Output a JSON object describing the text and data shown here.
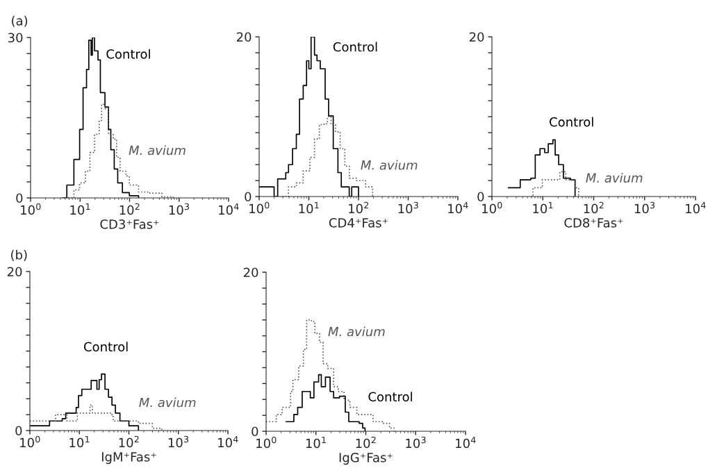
{
  "chart_data": [
    {
      "type": "step",
      "title": "(a)",
      "xlabel": "CD3⁺Fas⁺",
      "log": "x",
      "grid": false,
      "legend": false,
      "marker": "none",
      "xlim": [
        1,
        10000
      ],
      "xticks": [
        {
          "value": 1,
          "label": "10$^{0}$"
        },
        {
          "value": 10,
          "label": "10$^{1}$"
        },
        {
          "value": 100,
          "label": "10$^{2}$"
        },
        {
          "value": 1000,
          "label": "10$^{3}$"
        },
        {
          "value": 10000,
          "label": "10$^{4}$"
        }
      ],
      "ylim": [
        0,
        30
      ],
      "yticks": [
        0,
        {
          "value": 3,
          "label": null
        },
        {
          "value": 6,
          "label": null
        },
        {
          "value": 9,
          "label": null
        },
        {
          "value": 12,
          "label": null
        },
        {
          "value": 15,
          "label": null
        },
        {
          "value": 18,
          "label": null
        },
        {
          "value": 21,
          "label": null
        },
        {
          "value": 24,
          "label": null
        },
        {
          "value": 27,
          "label": null
        },
        30
      ],
      "series": [
        {
          "name": "Control",
          "color": "#000000",
          "line_style": "solid",
          "x": [
            4.4,
            5.4,
            7.5,
            9.8,
            11.5,
            13.5,
            15,
            16.7,
            17.7,
            19.6,
            23,
            25.7,
            31.8,
            37.5,
            41.8,
            49,
            57.6,
            71.6,
            99,
            152
          ],
          "values": [
            0,
            2.4,
            7.2,
            12.8,
            20.6,
            24,
            29.5,
            26.7,
            30,
            27.5,
            25.8,
            19.7,
            17,
            12.8,
            9,
            5.4,
            2.8,
            1,
            0.4,
            0
          ]
        },
        {
          "name": "M. avium",
          "color": "#555555",
          "line_style": "dotted",
          "x": [
            4.9,
            7.5,
            9.8,
            12.8,
            15.8,
            19.6,
            24.4,
            27.2,
            31.8,
            37.5,
            46.6,
            54.6,
            64.3,
            84.3,
            99,
            152,
            233,
            450,
            766
          ],
          "values": [
            0,
            1.5,
            2.8,
            5,
            8.5,
            11.9,
            14.5,
            17.5,
            16.7,
            11.9,
            11,
            7.6,
            5,
            4.1,
            2.4,
            1.1,
            0.9,
            0.2,
            0
          ]
        }
      ]
    },
    {
      "type": "step",
      "xlabel": "CD4⁺Fas⁺",
      "log": "x",
      "grid": false,
      "legend": false,
      "marker": "none",
      "xlim": [
        1,
        10000
      ],
      "xticks": [
        {
          "value": 1,
          "label": "10$^{0}$"
        },
        {
          "value": 10,
          "label": "10$^{1}$"
        },
        {
          "value": 100,
          "label": "10$^{2}$"
        },
        {
          "value": 1000,
          "label": "10$^{3}$"
        },
        {
          "value": 10000,
          "label": "10$^{4}$"
        }
      ],
      "ylim": [
        0,
        20
      ],
      "yticks": [
        0,
        {
          "value": 2,
          "label": null
        },
        {
          "value": 4,
          "label": null
        },
        {
          "value": 6,
          "label": null
        },
        {
          "value": 8,
          "label": null
        },
        {
          "value": 10,
          "label": null
        },
        {
          "value": 12,
          "label": null
        },
        {
          "value": 14,
          "label": null
        },
        {
          "value": 16,
          "label": null
        },
        {
          "value": 18,
          "label": null
        },
        20
      ],
      "series": [
        {
          "name": "Control",
          "color": "#000000",
          "line_style": "solid",
          "x": [
            1,
            1.6,
            2,
            2.36,
            3.43,
            3.9,
            4.7,
            5.6,
            6.5,
            7.7,
            9,
            10,
            11.1,
            13,
            14.6,
            17,
            21.3,
            25,
            31,
            38.5,
            45,
            65,
            73,
            100
          ],
          "values": [
            1.2,
            1.2,
            0,
            2.2,
            3,
            4,
            6,
            7.8,
            12.2,
            13.9,
            17,
            16,
            20,
            17.7,
            17,
            16,
            12.2,
            10.1,
            6,
            3,
            1.2,
            0,
            1.2,
            0
          ]
        },
        {
          "name": "M. avium",
          "color": "#555555",
          "line_style": "dotted",
          "x": [
            2.9,
            3.9,
            5.6,
            7.7,
            10.5,
            13,
            16.3,
            20.2,
            23.7,
            28,
            34.5,
            42.7,
            53,
            65.6,
            90.5,
            139,
            192
          ],
          "values": [
            0,
            1.2,
            1.7,
            3.2,
            4.9,
            7.2,
            9,
            9.1,
            10,
            9,
            8.1,
            6,
            3.8,
            2.3,
            2,
            1.2,
            0
          ]
        }
      ]
    },
    {
      "type": "step",
      "xlabel": "CD8⁺Fas⁺",
      "log": "x",
      "grid": false,
      "legend": false,
      "marker": "none",
      "xlim": [
        1,
        10000
      ],
      "xticks": [
        {
          "value": 1,
          "label": "10$^{0}$"
        },
        {
          "value": 10,
          "label": "10$^{1}$"
        },
        {
          "value": 100,
          "label": "10$^{2}$"
        },
        {
          "value": 1000,
          "label": "10$^{3}$"
        },
        {
          "value": 10000,
          "label": "10$^{4}$"
        }
      ],
      "ylim": [
        0,
        20
      ],
      "yticks": [
        0,
        {
          "value": 2,
          "label": null
        },
        {
          "value": 4,
          "label": null
        },
        {
          "value": 6,
          "label": null
        },
        {
          "value": 8,
          "label": null
        },
        {
          "value": 10,
          "label": null
        },
        {
          "value": 12,
          "label": null
        },
        {
          "value": 14,
          "label": null
        },
        {
          "value": 16,
          "label": null
        },
        {
          "value": 18,
          "label": null
        },
        20
      ],
      "series": [
        {
          "name": "Control",
          "color": "#000000",
          "line_style": "solid",
          "x": [
            2.1,
            3.0,
            3.6,
            5.8,
            7.1,
            8.8,
            10.9,
            12.8,
            15.8,
            17.5,
            20.5,
            25.4,
            34.9,
            43
          ],
          "values": [
            1.1,
            1.1,
            2.1,
            2.3,
            5.2,
            6,
            5.5,
            6.6,
            7.1,
            5.2,
            4,
            2.3,
            2.1,
            0
          ]
        },
        {
          "name": "M. avium",
          "color": "#555555",
          "line_style": "dotted",
          "x": [
            5.8,
            6.4,
            9.8,
            13.4,
            18.5,
            21.6,
            28.3,
            43,
            50.6
          ],
          "values": [
            0,
            1.1,
            2.1,
            2.1,
            2.1,
            3.1,
            2.1,
            1.1,
            0
          ]
        }
      ]
    },
    {
      "type": "step",
      "title": "(b)",
      "xlabel": "IgM⁺Fas⁺",
      "log": "x",
      "grid": false,
      "legend": false,
      "marker": "none",
      "xlim": [
        1,
        10000
      ],
      "xticks": [
        {
          "value": 1,
          "label": "10$^{0}$"
        },
        {
          "value": 10,
          "label": "10$^{1}$"
        },
        {
          "value": 100,
          "label": "10$^{2}$"
        },
        {
          "value": 1000,
          "label": "10$^{3}$"
        },
        {
          "value": 10000,
          "label": "10$^{4}$"
        }
      ],
      "ylim": [
        0,
        20
      ],
      "yticks": [
        0,
        {
          "value": 2,
          "label": null
        },
        {
          "value": 4,
          "label": null
        },
        {
          "value": 6,
          "label": null
        },
        {
          "value": 8,
          "label": null
        },
        {
          "value": 10,
          "label": null
        },
        {
          "value": 12,
          "label": null
        },
        {
          "value": 14,
          "label": null
        },
        {
          "value": 16,
          "label": null
        },
        {
          "value": 18,
          "label": null
        },
        20
      ],
      "series": [
        {
          "name": "Control",
          "color": "#000000",
          "line_style": "solid",
          "x": [
            1,
            2.5,
            4.5,
            5.3,
            8.6,
            9.6,
            11.2,
            14.7,
            17.3,
            22.6,
            25.1,
            28,
            32.9,
            38.7,
            45.5,
            53.4,
            66,
            100,
            156
          ],
          "values": [
            0.6,
            1.2,
            1.5,
            2.2,
            2.9,
            4.4,
            5.2,
            5.2,
            6.3,
            5.2,
            6.4,
            7.1,
            5.2,
            4.2,
            3.2,
            2.2,
            1.2,
            0.6,
            0
          ]
        },
        {
          "name": "M. avium",
          "color": "#555555",
          "line_style": "dotted",
          "x": [
            1,
            3.3,
            5.6,
            9.1,
            16.4,
            18.3,
            43,
            48,
            82,
            156,
            298,
            460
          ],
          "values": [
            1.2,
            2,
            1.2,
            2.2,
            3.2,
            2.2,
            2,
            1.2,
            1.2,
            0.9,
            0.3,
            0
          ]
        }
      ]
    },
    {
      "type": "step",
      "xlabel": "IgG⁺Fas⁺",
      "log": "x",
      "grid": false,
      "legend": false,
      "marker": "none",
      "xlim": [
        1,
        10000
      ],
      "xticks": [
        {
          "value": 1,
          "label": "10$^{0}$"
        },
        {
          "value": 10,
          "label": "10$^{1}$"
        },
        {
          "value": 100,
          "label": "10$^{2}$"
        },
        {
          "value": 1000,
          "label": "10$^{3}$"
        },
        {
          "value": 10000,
          "label": "10$^{4}$"
        }
      ],
      "ylim": [
        0,
        20
      ],
      "yticks": [
        0,
        {
          "value": 2,
          "label": null
        },
        {
          "value": 4,
          "label": null
        },
        {
          "value": 6,
          "label": null
        },
        {
          "value": 8,
          "label": null
        },
        {
          "value": 10,
          "label": null
        },
        {
          "value": 12,
          "label": null
        },
        {
          "value": 14,
          "label": null
        },
        {
          "value": 16,
          "label": null
        },
        {
          "value": 18,
          "label": null
        },
        20
      ],
      "series": [
        {
          "name": "Control",
          "color": "#000000",
          "line_style": "solid",
          "x": [
            2.5,
            3.6,
            4.3,
            5.3,
            6.5,
            7.7,
            9.1,
            11.3,
            12.8,
            15.5,
            19.2,
            22.6,
            29.6,
            38.7,
            45.5,
            73.6,
            86.5,
            96.6
          ],
          "values": [
            1.2,
            2.1,
            3,
            5,
            5,
            4.2,
            6.2,
            7.1,
            5.6,
            6.8,
            5,
            4.2,
            4.4,
            2.4,
            1.2,
            1,
            0.4,
            0
          ]
        },
        {
          "name": "M. avium",
          "color": "#555555",
          "line_style": "dotted",
          "x": [
            1,
            1.6,
            2.1,
            3.1,
            3.45,
            4.5,
            5.6,
            6.5,
            8.1,
            9.5,
            11.8,
            13.9,
            17.2,
            22.6,
            28,
            36.5,
            48,
            66,
            91,
            140,
            216,
            298,
            370
          ],
          "values": [
            1.2,
            2.1,
            3,
            5,
            6.5,
            8.2,
            10.3,
            14,
            13.8,
            12.3,
            11.2,
            8.5,
            7.9,
            5.6,
            5,
            3.9,
            3,
            2.1,
            2.1,
            1.2,
            1,
            0.4,
            0
          ]
        }
      ]
    }
  ]
}
